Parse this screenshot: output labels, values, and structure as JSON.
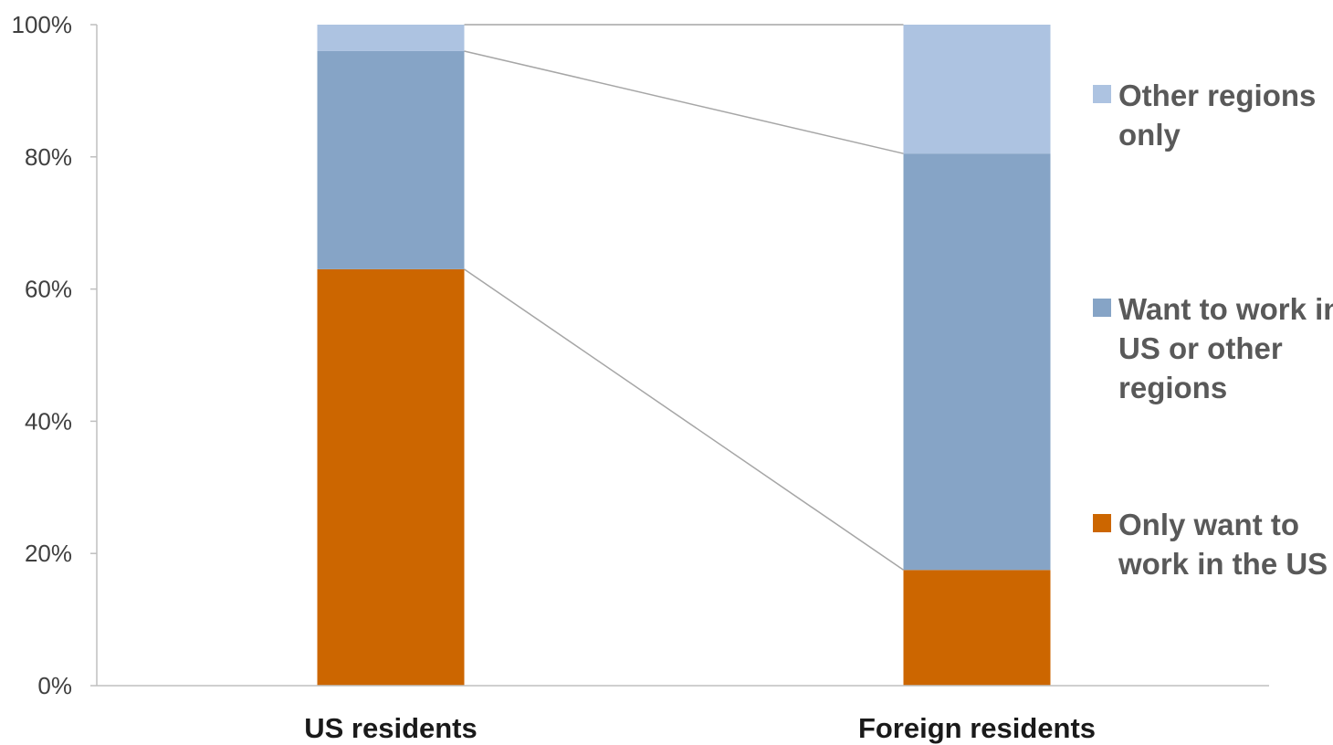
{
  "chart_data": {
    "type": "bar",
    "stacked": true,
    "categories": [
      "US residents",
      "Foreign residents"
    ],
    "series": [
      {
        "name": "Only want to work in the US",
        "values": [
          63,
          17.5
        ],
        "color": "#cc6600"
      },
      {
        "name": "Want to work in US or other regions",
        "values": [
          33,
          63
        ],
        "color": "#86a4c6"
      },
      {
        "name": "Other regions only",
        "values": [
          4,
          19.5
        ],
        "color": "#adc3e1"
      }
    ],
    "y_ticks": [
      "0%",
      "20%",
      "40%",
      "60%",
      "80%",
      "100%"
    ],
    "ylim": [
      0,
      100
    ],
    "connector_lines": true,
    "legend_position": "right",
    "grid": false,
    "title": "",
    "xlabel": "",
    "ylabel": "",
    "legend": [
      {
        "lines": [
          "Other regions",
          "only"
        ],
        "color": "#adc3e1"
      },
      {
        "lines": [
          "Want to work in",
          "US or other",
          "regions"
        ],
        "color": "#86a4c6"
      },
      {
        "lines": [
          "Only want to",
          "work in the US"
        ],
        "color": "#cc6600"
      }
    ]
  }
}
